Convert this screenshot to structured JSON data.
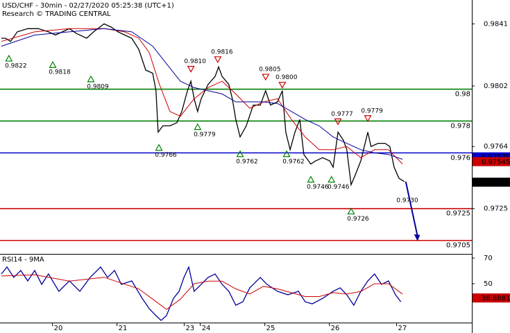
{
  "chart_data": [
    {
      "type": "line",
      "title": "USD/CHF - 30min - 02/27/2020 05:25:38 (UTC+1)",
      "subtitle": "Research © TRADING CENTRAL",
      "xlim": [
        0,
        175
      ],
      "ylim": [
        0.9697,
        0.9856
      ],
      "yticks": [
        0.9841,
        0.9802,
        0.9764,
        0.9725
      ],
      "series": [
        {
          "color": "#000000",
          "x": [
            0,
            1.5,
            3.4,
            5.9,
            9.8,
            13.7,
            17.5,
            20.1,
            22.7,
            25.3,
            27.9,
            31.7,
            34.3,
            38.2,
            40.8,
            43.4,
            45.9,
            48.5,
            51.1,
            53.7,
            56.3,
            57.5,
            58.3,
            60.1,
            62.7,
            65.3,
            67.1,
            69.2,
            70.5,
            71.7,
            73.0,
            74.3,
            76.9,
            79.5,
            80.8,
            82.1,
            84.6,
            85.9,
            87.2,
            88.8,
            91.1,
            93.7,
            96.3,
            98.3,
            100.1,
            102.7,
            104.5,
            105.8,
            107.4,
            109.2,
            111.0,
            112.5,
            115.1,
            116.9,
            119.5,
            122.1,
            123.4,
            125.2,
            127.2,
            128.5,
            130.1,
            131.6,
            133.7,
            136.3,
            137.5,
            140.1,
            142.7,
            144.5,
            146.1,
            147.9,
            149.9
          ],
          "values": [
            0.9832,
            0.9832,
            0.983,
            0.9836,
            0.9838,
            0.9838,
            0.9836,
            0.9834,
            0.9836,
            0.9838,
            0.9835,
            0.9832,
            0.9836,
            0.9841,
            0.9839,
            0.9836,
            0.9834,
            0.9832,
            0.9825,
            0.9812,
            0.981,
            0.9799,
            0.9773,
            0.9777,
            0.9777,
            0.9779,
            0.9786,
            0.9799,
            0.9805,
            0.9794,
            0.9786,
            0.9794,
            0.9803,
            0.9808,
            0.9814,
            0.9808,
            0.9803,
            0.9794,
            0.9781,
            0.977,
            0.9777,
            0.979,
            0.979,
            0.9799,
            0.979,
            0.9792,
            0.9799,
            0.9773,
            0.9762,
            0.9773,
            0.9781,
            0.9759,
            0.9753,
            0.9755,
            0.9757,
            0.9755,
            0.9751,
            0.9773,
            0.9768,
            0.9762,
            0.974,
            0.9746,
            0.9755,
            0.9773,
            0.9764,
            0.9766,
            0.9766,
            0.9764,
            0.9751,
            0.9744,
            0.9742
          ]
        },
        {
          "color": "#cc0000",
          "x": [
            0,
            12.4,
            25.3,
            38.2,
            45.9,
            51.1,
            55.0,
            58.8,
            62.7,
            66.6,
            71.7,
            76.9,
            82.1,
            87.2,
            92.4,
            97.5,
            102.7,
            107.9,
            113.0,
            118.2,
            123.4,
            128.5,
            133.7,
            138.8,
            144.0,
            149.2
          ],
          "values": [
            0.983,
            0.9836,
            0.9838,
            0.9838,
            0.9836,
            0.9832,
            0.9823,
            0.9803,
            0.9786,
            0.9783,
            0.9794,
            0.9801,
            0.9805,
            0.9797,
            0.9788,
            0.9792,
            0.9794,
            0.9781,
            0.977,
            0.9762,
            0.9762,
            0.9764,
            0.9757,
            0.9762,
            0.9762,
            0.9753
          ]
        },
        {
          "color": "#000099",
          "x": [
            0,
            12.4,
            25.3,
            38.2,
            48.5,
            56.3,
            61.4,
            66.6,
            71.7,
            76.9,
            82.1,
            87.2,
            92.4,
            97.5,
            102.7,
            107.9,
            113.0,
            118.2,
            123.4,
            128.5,
            133.7,
            138.8,
            144.0,
            149.2
          ],
          "values": [
            0.9827,
            0.9834,
            0.9836,
            0.9838,
            0.9836,
            0.9827,
            0.9816,
            0.9805,
            0.9801,
            0.9799,
            0.9797,
            0.9792,
            0.9792,
            0.9792,
            0.9791,
            0.9786,
            0.9781,
            0.9777,
            0.977,
            0.9766,
            0.9762,
            0.976,
            0.9759,
            0.9756
          ]
        }
      ],
      "levels": [
        {
          "value": 0.98,
          "color": "#008000"
        },
        {
          "value": 0.978,
          "color": "#008000"
        },
        {
          "value": 0.976,
          "color": "#0000cc"
        },
        {
          "value": 0.9725,
          "color": "#cc0000"
        },
        {
          "value": 0.9705,
          "color": "#cc0000"
        }
      ],
      "annotations": [
        {
          "x": 2.8,
          "value": 0.9822,
          "label": "0.9822",
          "dir": "up"
        },
        {
          "x": 19.1,
          "value": 0.9818,
          "label": "0.9818",
          "dir": "up"
        },
        {
          "x": 33.3,
          "value": 0.9809,
          "label": "0.9809",
          "dir": "up"
        },
        {
          "x": 58.6,
          "value": 0.9766,
          "label": "0.9766",
          "dir": "up"
        },
        {
          "x": 73.0,
          "value": 0.9779,
          "label": "0.9779",
          "dir": "up"
        },
        {
          "x": 88.8,
          "value": 0.9762,
          "label": "0.9762",
          "dir": "up"
        },
        {
          "x": 106.1,
          "value": 0.9762,
          "label": "0.9762",
          "dir": "up"
        },
        {
          "x": 115.1,
          "value": 0.9746,
          "label": "0.9746",
          "dir": "up"
        },
        {
          "x": 122.8,
          "value": 0.9746,
          "label": "0.9746",
          "dir": "up"
        },
        {
          "x": 130.1,
          "value": 0.9726,
          "label": "0.9726",
          "dir": "up"
        },
        {
          "x": 151.0,
          "value": 0.973,
          "label": "0.9730",
          "dir": "none"
        },
        {
          "x": 70.5,
          "value": 0.981,
          "label": "0.9810",
          "dir": "down"
        },
        {
          "x": 80.5,
          "value": 0.9816,
          "label": "0.9816",
          "dir": "down"
        },
        {
          "x": 98.3,
          "value": 0.9805,
          "label": "0.9805",
          "dir": "down"
        },
        {
          "x": 104.5,
          "value": 0.98,
          "label": "0.9800",
          "dir": "down"
        },
        {
          "x": 125.2,
          "value": 0.9777,
          "label": "0.9777",
          "dir": "down"
        },
        {
          "x": 136.3,
          "value": 0.9779,
          "label": "0.9779",
          "dir": "down"
        }
      ],
      "price_tags": [
        {
          "value": 0.97575,
          "color": "#0000cc"
        },
        {
          "value": 0.97545,
          "color": "#cc0000"
        },
        {
          "value": 0.97416,
          "color": "#000000"
        }
      ]
    },
    {
      "type": "line",
      "title": "RSI14 - 9MA",
      "xlim": [
        0,
        175
      ],
      "xticks": [
        {
          "value": 19,
          "label": "20"
        },
        {
          "value": 43,
          "label": "21"
        },
        {
          "value": 68,
          "label": "23"
        },
        {
          "value": 74,
          "label": "24"
        },
        {
          "value": 98,
          "label": "25"
        },
        {
          "value": 122,
          "label": "26"
        },
        {
          "value": 147,
          "label": "27"
        }
      ],
      "ylim": [
        19.7,
        72.7
      ],
      "yticks": [
        70,
        50
      ],
      "series": [
        {
          "color": "#000099",
          "x": [
            0,
            2.1,
            4.6,
            7.2,
            9.8,
            12.4,
            15.0,
            17.5,
            21.4,
            25.3,
            29.2,
            33.0,
            36.9,
            39.5,
            42.1,
            44.6,
            48.5,
            52.4,
            55.0,
            57.5,
            59.4,
            61.4,
            64.0,
            66.1,
            67.9,
            69.7,
            71.7,
            74.3,
            76.9,
            79.5,
            82.1,
            84.6,
            87.2,
            89.8,
            92.4,
            96.3,
            98.8,
            102.7,
            106.6,
            110.5,
            113.0,
            115.6,
            119.5,
            123.4,
            126.0,
            128.5,
            131.1,
            133.7,
            136.3,
            138.8,
            141.4,
            144.0,
            146.6,
            148.6
          ],
          "values": [
            57.6,
            63.0,
            54.9,
            60.3,
            52.2,
            60.3,
            49.5,
            57.6,
            44.1,
            52.2,
            44.1,
            54.9,
            63.0,
            54.9,
            60.3,
            49.5,
            52.2,
            38.6,
            30.5,
            25.1,
            21.4,
            25.1,
            38.6,
            44.1,
            54.9,
            63.0,
            44.1,
            49.5,
            54.9,
            57.6,
            49.5,
            44.1,
            33.2,
            35.9,
            46.8,
            54.9,
            49.5,
            44.1,
            41.4,
            44.1,
            35.9,
            34.3,
            38.6,
            44.1,
            46.8,
            41.4,
            33.2,
            44.1,
            52.2,
            57.6,
            49.5,
            52.2,
            41.4,
            35.9
          ]
        },
        {
          "color": "#cc0000",
          "x": [
            0,
            12.4,
            25.3,
            38.2,
            51.1,
            56.3,
            61.4,
            66.6,
            71.7,
            76.9,
            82.1,
            87.2,
            92.4,
            97.5,
            102.7,
            107.9,
            113.0,
            118.2,
            123.4,
            128.5,
            133.7,
            138.8,
            144.0,
            149.2
          ],
          "values": [
            56,
            57,
            52,
            55,
            46,
            38,
            30,
            38,
            50,
            52,
            52,
            46,
            42,
            48,
            46,
            43,
            40,
            40,
            43,
            42,
            44,
            50,
            50,
            42
          ]
        }
      ],
      "price_tags": [
        {
          "value": 38.9172,
          "color": "#0000cc"
        },
        {
          "value": 38.8881,
          "color": "#cc0000"
        }
      ]
    }
  ]
}
